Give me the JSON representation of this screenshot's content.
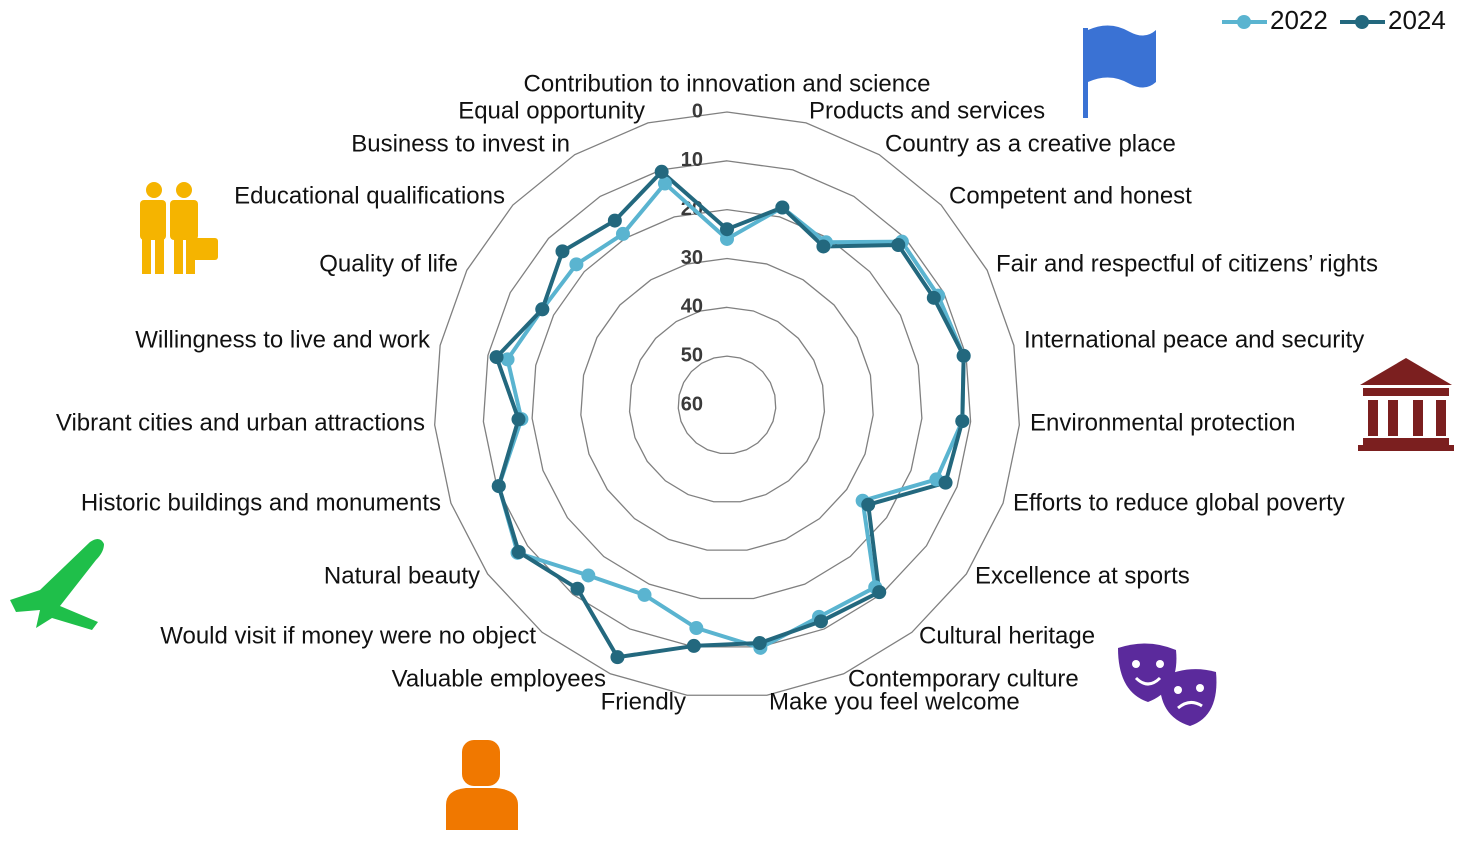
{
  "chart_data": {
    "type": "radar",
    "categories": [
      "Contribution to innovation and science",
      "Products and services",
      "Country as a creative place",
      "Competent and honest",
      "Fair and respectful of citizens’ rights",
      "International peace and security",
      "Environmental protection",
      "Efforts to reduce global poverty",
      "Excellence at sports",
      "Cultural heritage",
      "Contemporary culture",
      "Make you feel welcome",
      "Friendly",
      "Valuable employees",
      "Would visit if money were no object",
      "Natural beauty",
      "Historic buildings and monuments",
      "Vibrant cities and urban attractions",
      "Willingness to live and work",
      "Quality of life",
      "Educational qualifications",
      "Business to invest in",
      "Equal opportunity"
    ],
    "series": [
      {
        "name": "2022",
        "color": "#5ab4d0",
        "values": [
          26,
          18,
          21,
          11,
          11.3,
          10.5,
          11.7,
          14.5,
          26,
          11.9,
          12.7,
          9.8,
          13.9,
          17.6,
          15,
          7.5,
          10.4,
          17.8,
          14.1,
          17.4,
          17.8,
          19,
          12.9
        ]
      },
      {
        "name": "2024",
        "color": "#23687e",
        "values": [
          24,
          18,
          22,
          12,
          12.3,
          10.5,
          11.7,
          12.5,
          24.6,
          10.6,
          11.7,
          10.8,
          10.2,
          3.7,
          11.5,
          7.8,
          10.4,
          17.2,
          11.8,
          17.4,
          13.9,
          15.8,
          10.4
        ]
      }
    ],
    "ylim": [
      60,
      0
    ],
    "yticks": [
      0,
      10,
      20,
      30,
      40,
      50,
      60
    ],
    "grid": true,
    "legend": "top-right"
  }
}
